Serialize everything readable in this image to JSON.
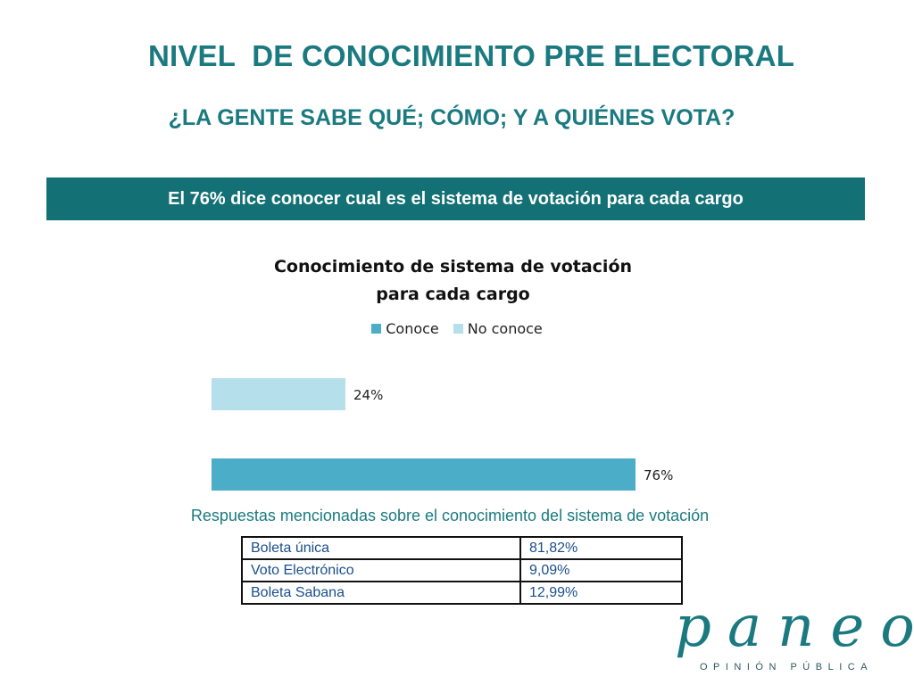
{
  "header": {
    "title": "NIVEL  DE CONOCIMIENTO PRE ELECTORAL",
    "subtitle": "¿LA GENTE SABE QUÉ; CÓMO; Y A QUIÉNES VOTA?"
  },
  "banner": {
    "text": "El 76% dice conocer cual es el sistema de votación para cada cargo"
  },
  "chart_data": {
    "type": "bar",
    "orientation": "horizontal",
    "title": "Conocimiento de sistema de votación para cada cargo",
    "title_lines": [
      "Conocimiento de sistema de votación",
      "para cada cargo"
    ],
    "legend_position": "top",
    "series": [
      {
        "name": "Conoce",
        "values": [
          76
        ],
        "label": "76%",
        "color": "#4badc8"
      },
      {
        "name": "No conoce",
        "values": [
          24
        ],
        "label": "24%",
        "color": "#b5dfea"
      }
    ],
    "categories": [
      ""
    ],
    "xlim": [
      0,
      100
    ],
    "grid": false
  },
  "caption": "Respuestas mencionadas sobre el conocimiento del sistema de votación",
  "table": {
    "rows": [
      {
        "name": "Boleta única",
        "value": "81,82%"
      },
      {
        "name": "Voto Electrónico",
        "value": "9,09%"
      },
      {
        "name": "Boleta Sabana",
        "value": "12,99%"
      }
    ]
  },
  "brand": {
    "name": "paneo",
    "tagline": "OPINIÓN PÚBLICA"
  }
}
